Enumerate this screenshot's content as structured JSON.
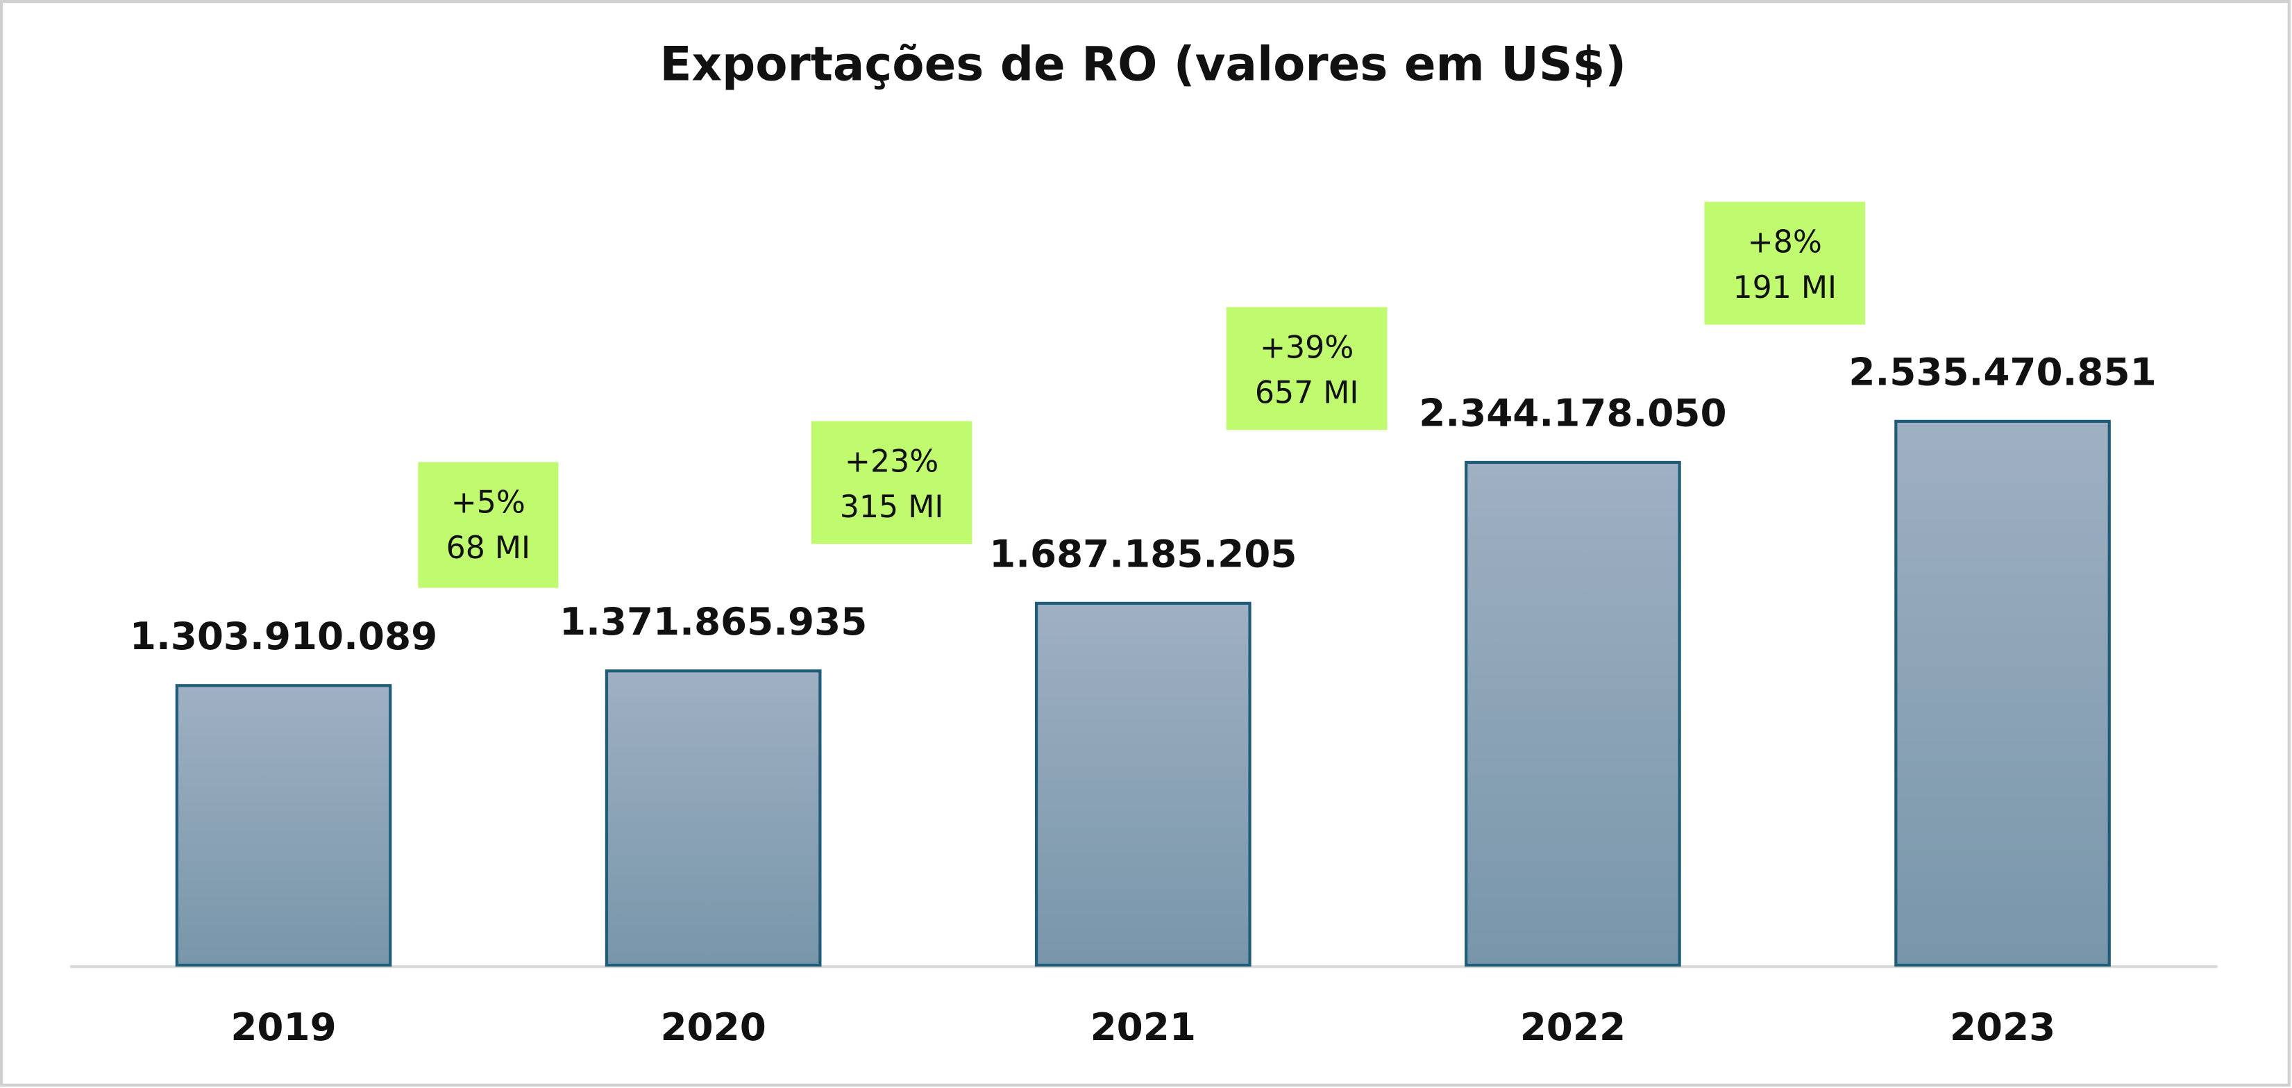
{
  "chart_data": {
    "type": "bar",
    "title": "Exportações de RO (valores em US$)",
    "categories": [
      "2019",
      "2020",
      "2021",
      "2022",
      "2023"
    ],
    "values": [
      1303910089,
      1371865935,
      1687185205,
      2344178050,
      2535470851
    ],
    "value_labels": [
      "1.303.910.089",
      "1.371.865.935",
      "1.687.185.205",
      "2.344.178.050",
      "2.535.470.851"
    ],
    "color": "#8ea4b7",
    "ylim": [
      0,
      3000000000
    ],
    "annotations": [
      {
        "change": "+5%",
        "diff": "68 MI"
      },
      {
        "change": "+23%",
        "diff": "315 MI"
      },
      {
        "change": "+39%",
        "diff": "657 MI"
      },
      {
        "change": "+8%",
        "diff": "191 MI"
      }
    ]
  }
}
